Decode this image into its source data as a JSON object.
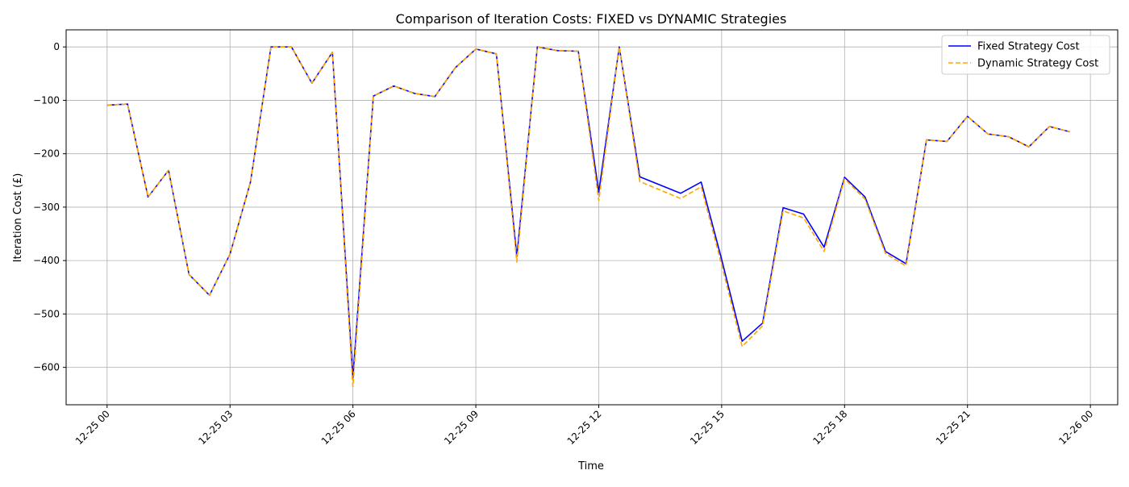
{
  "chart_data": {
    "type": "line",
    "title": "Comparison of Iteration Costs: FIXED vs DYNAMIC Strategies",
    "xlabel": "Time",
    "ylabel": "Iteration Cost (£)",
    "x": [
      "12-25 00:00",
      "12-25 00:30",
      "12-25 01:00",
      "12-25 01:30",
      "12-25 02:00",
      "12-25 02:30",
      "12-25 03:00",
      "12-25 03:30",
      "12-25 04:00",
      "12-25 04:30",
      "12-25 05:00",
      "12-25 05:30",
      "12-25 06:00",
      "12-25 06:30",
      "12-25 07:00",
      "12-25 07:30",
      "12-25 08:00",
      "12-25 08:30",
      "12-25 09:00",
      "12-25 09:30",
      "12-25 10:00",
      "12-25 10:30",
      "12-25 11:00",
      "12-25 11:30",
      "12-25 12:00",
      "12-25 12:30",
      "12-25 13:00",
      "12-25 14:00",
      "12-25 14:30",
      "12-25 15:00",
      "12-25 15:30",
      "12-25 16:00",
      "12-25 16:30",
      "12-25 17:00",
      "12-25 17:30",
      "12-25 18:00",
      "12-25 18:30",
      "12-25 19:00",
      "12-25 19:30",
      "12-25 20:00",
      "12-25 20:30",
      "12-25 21:00",
      "12-25 21:30",
      "12-25 22:00",
      "12-25 22:30",
      "12-25 23:00",
      "12-25 23:30"
    ],
    "series": [
      {
        "name": "Fixed Strategy Cost",
        "color": "#0000ff",
        "style": "solid",
        "values": [
          -109,
          -107,
          -281,
          -231,
          -426,
          -465,
          -388,
          -253,
          0,
          0,
          -68,
          -10,
          -620,
          -92,
          -73,
          -87,
          -93,
          -39,
          -4,
          -13,
          -392,
          0,
          -7,
          -8,
          -272,
          0,
          -243,
          -274,
          -253,
          -398,
          -551,
          -517,
          -301,
          -313,
          -375,
          -244,
          -281,
          -383,
          -406,
          -174,
          -177,
          -130,
          -163,
          -168,
          -187,
          -149,
          -159
        ]
      },
      {
        "name": "Dynamic Strategy Cost",
        "color": "#ffa500",
        "style": "dashed",
        "values": [
          -109,
          -107,
          -281,
          -231,
          -426,
          -465,
          -388,
          -253,
          0,
          0,
          -68,
          -10,
          -636,
          -92,
          -73,
          -87,
          -93,
          -39,
          -4,
          -13,
          -403,
          0,
          -7,
          -8,
          -288,
          0,
          -252,
          -284,
          -262,
          -408,
          -561,
          -522,
          -307,
          -320,
          -383,
          -247,
          -285,
          -387,
          -410,
          -174,
          -177,
          -130,
          -163,
          -168,
          -187,
          -149,
          -159
        ]
      }
    ],
    "xlim": [
      "12-24 23:00",
      "12-26 00:40"
    ],
    "ylim": [
      -670,
      32
    ],
    "x_ticks": [
      "12-25 00:00",
      "12-25 03:00",
      "12-25 06:00",
      "12-25 09:00",
      "12-25 12:00",
      "12-25 15:00",
      "12-25 18:00",
      "12-25 21:00",
      "12-26 00:00"
    ],
    "x_tick_labels": [
      "12-25 00",
      "12-25 03",
      "12-25 06",
      "12-25 09",
      "12-25 12",
      "12-25 15",
      "12-25 18",
      "12-25 21",
      "12-26 00"
    ],
    "y_ticks": [
      0,
      -100,
      -200,
      -300,
      -400,
      -500,
      -600
    ],
    "y_tick_labels": [
      "0",
      "−100",
      "−200",
      "−300",
      "−400",
      "−500",
      "−600"
    ],
    "grid": true,
    "legend_position": "top-right"
  }
}
